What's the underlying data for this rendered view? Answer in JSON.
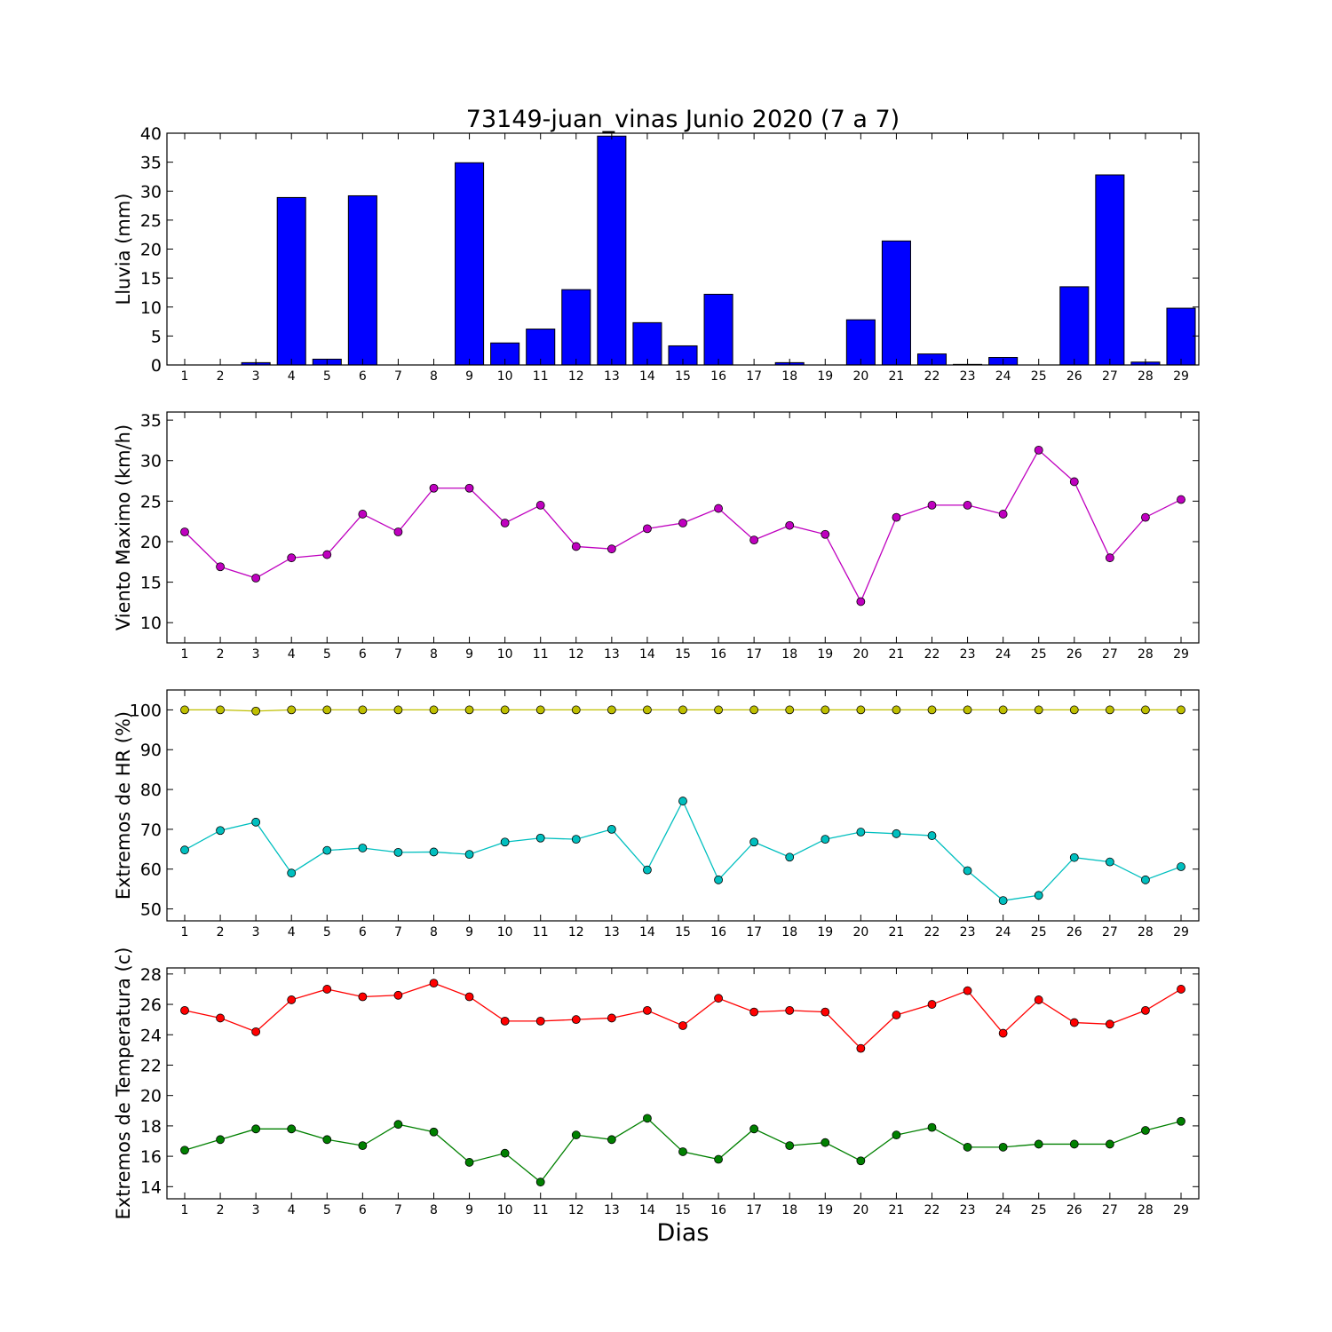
{
  "chart_data": {
    "title": "73149-juan_vinas Junio 2020  (7 a 7)",
    "xlabel": "Dias",
    "days": [
      1,
      2,
      3,
      4,
      5,
      6,
      7,
      8,
      9,
      10,
      11,
      12,
      13,
      14,
      15,
      16,
      17,
      18,
      19,
      20,
      21,
      22,
      23,
      24,
      25,
      26,
      27,
      28,
      29
    ],
    "panels": [
      {
        "type": "bar",
        "ylabel": "Lluvia (mm)",
        "ylim": [
          0,
          40
        ],
        "yticks": [
          0,
          5,
          10,
          15,
          20,
          25,
          30,
          35,
          40
        ],
        "series": [
          {
            "color": "#0000ff",
            "values": [
              0,
              0,
              0.4,
              28.9,
              1.0,
              29.2,
              0,
              0,
              34.9,
              3.8,
              6.2,
              13.0,
              39.5,
              7.3,
              3.3,
              12.2,
              0,
              0.4,
              0,
              7.8,
              21.4,
              1.9,
              0.1,
              1.3,
              0,
              13.5,
              32.8,
              0.5,
              9.8
            ]
          }
        ]
      },
      {
        "type": "line",
        "ylabel": "Viento Maximo (km/h)",
        "ylim": [
          7.5,
          36
        ],
        "yticks": [
          10,
          15,
          20,
          25,
          30,
          35
        ],
        "series": [
          {
            "color": "#bf00bf",
            "values": [
              21.2,
              16.9,
              15.5,
              18.0,
              18.4,
              23.4,
              21.2,
              26.6,
              26.6,
              22.3,
              24.5,
              19.4,
              19.1,
              21.6,
              22.3,
              24.1,
              20.2,
              22.0,
              20.9,
              12.6,
              23.0,
              24.5,
              24.5,
              23.4,
              31.3,
              27.4,
              18.0,
              23.0,
              25.2
            ]
          }
        ]
      },
      {
        "type": "line",
        "ylabel": "Extremos de HR (%)",
        "ylim": [
          47,
          105
        ],
        "yticks": [
          50,
          60,
          70,
          80,
          90,
          100
        ],
        "series": [
          {
            "color": "#bfbf00",
            "values": [
              100,
              100,
              99.7,
              100,
              100,
              100,
              100,
              100,
              100,
              100,
              100,
              100,
              100,
              100,
              100,
              100,
              100,
              100,
              100,
              100,
              100,
              100,
              100,
              100,
              100,
              100,
              100,
              100,
              100
            ]
          },
          {
            "color": "#00bfbf",
            "values": [
              64.8,
              69.7,
              71.8,
              59.0,
              64.7,
              65.3,
              64.2,
              64.3,
              63.7,
              66.8,
              67.8,
              67.5,
              70.0,
              59.8,
              77.1,
              57.3,
              66.8,
              63.0,
              67.5,
              69.3,
              68.9,
              68.4,
              59.6,
              52.1,
              53.4,
              62.9,
              61.8,
              57.3,
              60.6
            ]
          }
        ]
      },
      {
        "type": "line",
        "ylabel": "Extremos de Temperatura (c)",
        "ylim": [
          13.2,
          28.4
        ],
        "yticks": [
          14,
          16,
          18,
          20,
          22,
          24,
          26,
          28
        ],
        "series": [
          {
            "color": "#ff0000",
            "values": [
              25.6,
              25.1,
              24.2,
              26.3,
              27.0,
              26.5,
              26.6,
              27.4,
              26.5,
              24.9,
              24.9,
              25.0,
              25.1,
              25.6,
              24.6,
              26.4,
              25.5,
              25.6,
              25.5,
              23.1,
              25.3,
              26.0,
              26.9,
              24.1,
              26.3,
              24.8,
              24.7,
              25.6,
              27.0
            ]
          },
          {
            "color": "#008000",
            "values": [
              16.4,
              17.1,
              17.8,
              17.8,
              17.1,
              16.7,
              18.1,
              17.6,
              15.6,
              16.2,
              14.3,
              17.4,
              17.1,
              18.5,
              16.3,
              15.8,
              17.8,
              16.7,
              16.9,
              15.7,
              17.4,
              17.9,
              16.6,
              16.6,
              16.8,
              16.8,
              16.8,
              17.7,
              18.3
            ]
          }
        ]
      }
    ]
  }
}
